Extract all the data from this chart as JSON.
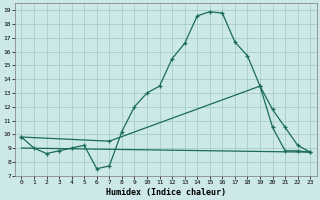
{
  "xlabel": "Humidex (Indice chaleur)",
  "bg_color": "#cde8e8",
  "grid_color": "#a0c8c8",
  "line_color": "#1a6b5a",
  "xlim_min": -0.5,
  "xlim_max": 23.5,
  "ylim_min": 7,
  "ylim_max": 19.5,
  "xticks": [
    0,
    1,
    2,
    3,
    4,
    5,
    6,
    7,
    8,
    9,
    10,
    11,
    12,
    13,
    14,
    15,
    16,
    17,
    18,
    19,
    20,
    21,
    22,
    23
  ],
  "yticks": [
    7,
    8,
    9,
    10,
    11,
    12,
    13,
    14,
    15,
    16,
    17,
    18,
    19
  ],
  "line1_x": [
    0,
    1,
    2,
    3,
    4,
    5,
    6,
    7,
    8,
    9,
    10,
    11,
    12,
    13,
    14,
    15,
    16,
    17,
    18,
    19,
    20,
    21,
    22,
    23
  ],
  "line1_y": [
    9.8,
    9.0,
    8.6,
    8.8,
    9.0,
    9.2,
    7.5,
    7.7,
    10.2,
    12.0,
    13.0,
    13.5,
    15.5,
    16.6,
    18.6,
    18.9,
    18.8,
    16.7,
    15.7,
    13.5,
    10.5,
    8.8,
    8.8,
    8.7
  ],
  "line2_x": [
    0,
    7,
    19,
    20,
    21,
    22,
    23
  ],
  "line2_y": [
    9.8,
    9.5,
    13.5,
    11.8,
    10.5,
    9.2,
    8.7
  ],
  "line3_x": [
    0,
    23
  ],
  "line3_y": [
    9.0,
    8.7
  ]
}
